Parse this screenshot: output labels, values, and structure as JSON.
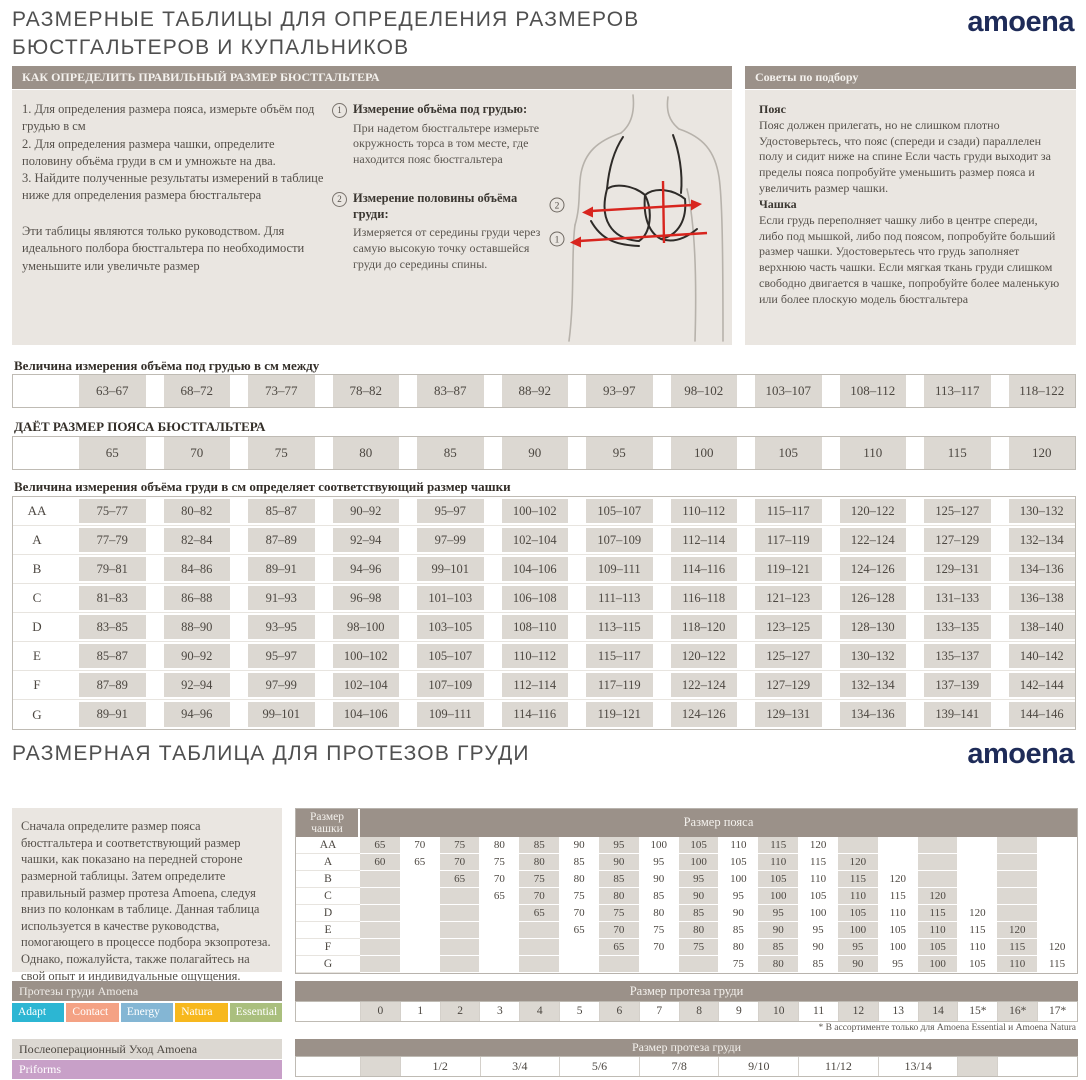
{
  "page": {
    "title_line1": "РАЗМЕРНЫЕ ТАБЛИЦЫ ДЛЯ ОПРЕДЕЛЕНИЯ РАЗМЕРОВ",
    "title_line2": "БЮСТГАЛЬТЕРОВ И КУПАЛЬНИКОВ",
    "logo": "amoena",
    "section2_title": "РАЗМЕРНАЯ ТАБЛИЦА ДЛЯ ПРОТЕЗОВ ГРУДИ"
  },
  "colors": {
    "taupe_header": "#9b9189",
    "panel_beige": "#eae6e1",
    "cell_shade": "#dcd8d2",
    "logo_navy": "#1e2b58",
    "arrow_red": "#d8251e"
  },
  "how_to": {
    "header": "КАК ОПРЕДЕЛИТЬ ПРАВИЛЬНЫЙ РАЗМЕР БЮСТГАЛЬТЕРА",
    "steps": [
      "1. Для определения размера пояса, измерьте объём под грудью в см",
      "2.  Для определения размера чашки, определите половину объёма груди в см и умножьте на два.",
      "3.  Найдите полученные результаты измерений в таблице ниже для определения размера бюстгальтера"
    ],
    "note": "Эти таблицы являются только руководством. Для идеального полбора бюстгальтера по необходимости уменьшите или увеличьте размер",
    "measurements": [
      {
        "num": "1",
        "title": "Измерение объёма под грудью:",
        "text": "При надетом бюстгальтере измерьте окружность торса в том месте, где находится пояс бюстгальтера"
      },
      {
        "num": "2",
        "title": "Измерение половины объёма груди:",
        "text": "Измеряется от середины груди через самую высокую точку оставшейся груди до середины спины."
      }
    ]
  },
  "tips": {
    "header": "Советы по подбору",
    "belt_title": "Пояс",
    "belt_text": "Пояс должен прилегать, но не слишком плотно Удостоверьтесь, что пояс (спереди и сзади) параллелен полу и сидит ниже на спине Если часть груди выходит за пределы пояса попробуйте уменьшить размер пояса и увеличить размер чашки.",
    "cup_title": "Чашка",
    "cup_text": "Если грудь переполняет чашку либо в центре спереди, либо под мышкой, либо под поясом, попробуйте больший размер чашки. Удостоверьтесь что грудь заполняет верхнюю часть чашки. Если мягкая ткань груди слишком свободно двигается в чашке, попробуйте более маленькую или более плоскую модель бюстгальтера"
  },
  "underbust": {
    "label": "Величина измерения объёма под грудью в см между",
    "values": [
      "63–67",
      "68–72",
      "73–77",
      "78–82",
      "83–87",
      "88–92",
      "93–97",
      "98–102",
      "103–107",
      "108–112",
      "113–117",
      "118–122"
    ]
  },
  "band": {
    "label": "ДАЁТ РАЗМЕР ПОЯСА БЮСТГАЛЬТЕРА",
    "values": [
      "65",
      "70",
      "75",
      "80",
      "85",
      "90",
      "95",
      "100",
      "105",
      "110",
      "115",
      "120"
    ]
  },
  "cup_table": {
    "label": "Величина измерения объёма груди в см определяет соответствующий размер чашки",
    "rows": [
      {
        "cup": "AA",
        "values": [
          "75–77",
          "80–82",
          "85–87",
          "90–92",
          "95–97",
          "100–102",
          "105–107",
          "110–112",
          "115–117",
          "120–122",
          "125–127",
          "130–132"
        ]
      },
      {
        "cup": "A",
        "values": [
          "77–79",
          "82–84",
          "87–89",
          "92–94",
          "97–99",
          "102–104",
          "107–109",
          "112–114",
          "117–119",
          "122–124",
          "127–129",
          "132–134"
        ]
      },
      {
        "cup": "B",
        "values": [
          "79–81",
          "84–86",
          "89–91",
          "94–96",
          "99–101",
          "104–106",
          "109–111",
          "114–116",
          "119–121",
          "124–126",
          "129–131",
          "134–136"
        ]
      },
      {
        "cup": "C",
        "values": [
          "81–83",
          "86–88",
          "91–93",
          "96–98",
          "101–103",
          "106–108",
          "111–113",
          "116–118",
          "121–123",
          "126–128",
          "131–133",
          "136–138"
        ]
      },
      {
        "cup": "D",
        "values": [
          "83–85",
          "88–90",
          "93–95",
          "98–100",
          "103–105",
          "108–110",
          "113–115",
          "118–120",
          "123–125",
          "128–130",
          "133–135",
          "138–140"
        ]
      },
      {
        "cup": "E",
        "values": [
          "85–87",
          "90–92",
          "95–97",
          "100–102",
          "105–107",
          "110–112",
          "115–117",
          "120–122",
          "125–127",
          "130–132",
          "135–137",
          "140–142"
        ]
      },
      {
        "cup": "F",
        "values": [
          "87–89",
          "92–94",
          "97–99",
          "102–104",
          "107–109",
          "112–114",
          "117–119",
          "122–124",
          "127–129",
          "132–134",
          "137–139",
          "142–144"
        ]
      },
      {
        "cup": "G",
        "values": [
          "89–91",
          "94–96",
          "99–101",
          "104–106",
          "109–111",
          "114–116",
          "119–121",
          "124–126",
          "129–131",
          "134–136",
          "139–141",
          "144–146"
        ]
      }
    ]
  },
  "prosthesis": {
    "intro": "Сначала определите размер пояса бюстгальтера и соответствующий размер чашки, как показано на передней стороне размерной таблицы. Затем определите правильный размер протеза Amoena, следуя вниз по колонкам в таблице. Данная таблица используется в качестве руководства, помогающего в процессе подбора экзопротеза. Однако, пожалуйста, также полагайтесь на свой опыт и индивидуальные ощущения.",
    "cup_header": "Размер чашки",
    "band_header": "Размер пояса",
    "columns": 18,
    "rows": [
      {
        "cup": "AA",
        "start": 1,
        "values": [
          "65",
          "70",
          "75",
          "80",
          "85",
          "90",
          "95",
          "100",
          "105",
          "110",
          "115",
          "120"
        ]
      },
      {
        "cup": "A",
        "start": 1,
        "values": [
          "60",
          "65",
          "70",
          "75",
          "80",
          "85",
          "90",
          "95",
          "100",
          "105",
          "110",
          "115",
          "120"
        ]
      },
      {
        "cup": "B",
        "start": 3,
        "values": [
          "65",
          "70",
          "75",
          "80",
          "85",
          "90",
          "95",
          "100",
          "105",
          "110",
          "115",
          "120"
        ]
      },
      {
        "cup": "C",
        "start": 4,
        "values": [
          "65",
          "70",
          "75",
          "80",
          "85",
          "90",
          "95",
          "100",
          "105",
          "110",
          "115",
          "120"
        ]
      },
      {
        "cup": "D",
        "start": 5,
        "values": [
          "65",
          "70",
          "75",
          "80",
          "85",
          "90",
          "95",
          "100",
          "105",
          "110",
          "115",
          "120"
        ]
      },
      {
        "cup": "E",
        "start": 6,
        "values": [
          "65",
          "70",
          "75",
          "80",
          "85",
          "90",
          "95",
          "100",
          "105",
          "110",
          "115",
          "120"
        ]
      },
      {
        "cup": "F",
        "start": 7,
        "values": [
          "65",
          "70",
          "75",
          "80",
          "85",
          "90",
          "95",
          "100",
          "105",
          "110",
          "115",
          "120"
        ]
      },
      {
        "cup": "G",
        "start": 10,
        "values": [
          "75",
          "80",
          "85",
          "90",
          "95",
          "100",
          "105",
          "110",
          "115"
        ]
      }
    ],
    "size_header": "Размер протеза груди",
    "sizes": [
      "0",
      "1",
      "2",
      "3",
      "4",
      "5",
      "6",
      "7",
      "8",
      "9",
      "10",
      "11",
      "12",
      "13",
      "14",
      "15*",
      "16*",
      "17*"
    ],
    "footnote": "* В ассортименте только для  Amoena Essential и Amoena Natura",
    "products_label": "Протезы груди Amoena",
    "products": [
      {
        "name": "Adapt",
        "color": "#2cb6d3"
      },
      {
        "name": "Contact",
        "color": "#f4a284"
      },
      {
        "name": "Energy",
        "color": "#84b6d4"
      },
      {
        "name": "Natura",
        "color": "#f7b81e"
      },
      {
        "name": "Essential",
        "color": "#aabf7e"
      }
    ],
    "care_label": "Послеоперационный Уход Amoena",
    "care_product": {
      "name": "Priforms",
      "color": "#c8a0c8"
    },
    "fraction_header": "Размер протеза груди",
    "fractions": [
      "1/2",
      "3/4",
      "5/6",
      "7/8",
      "9/10",
      "11/12",
      "13/14"
    ]
  }
}
